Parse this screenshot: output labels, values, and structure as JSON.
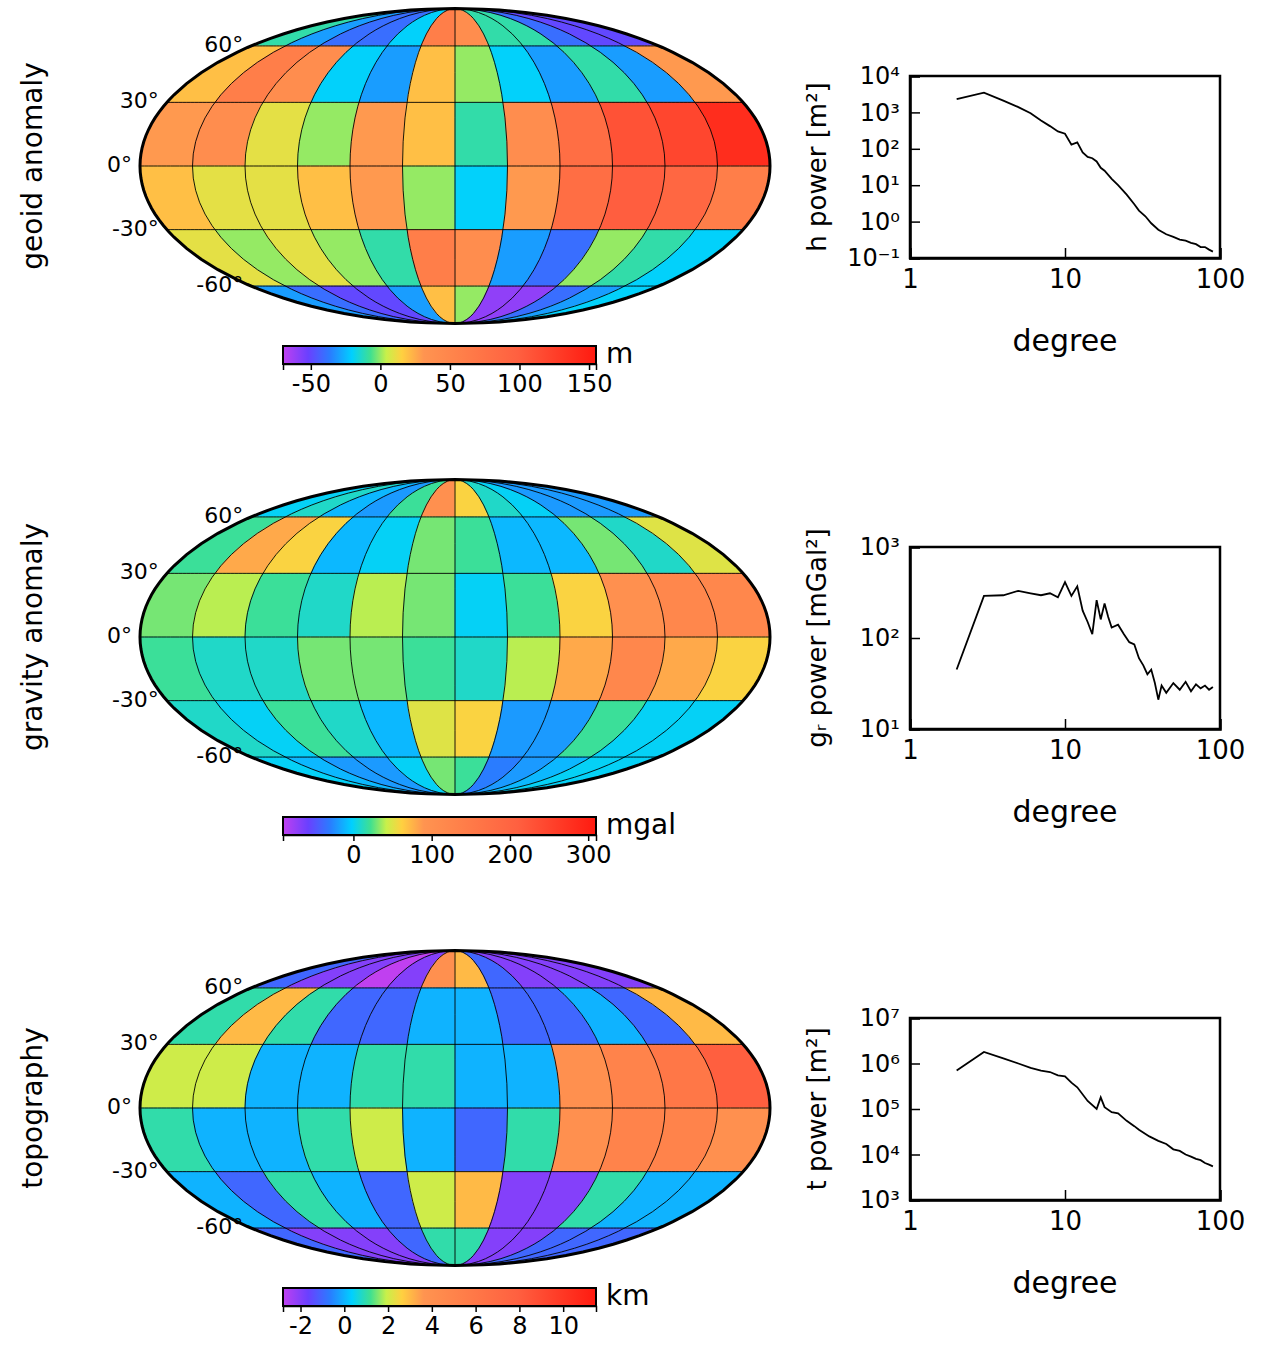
{
  "chart_data": [
    {
      "type": "map",
      "title": "geoid anomaly",
      "yticks": [
        {
          "value": 60,
          "label": "60°"
        },
        {
          "value": 30,
          "label": "30°"
        },
        {
          "value": 0,
          "label": "0°"
        },
        {
          "value": -30,
          "label": "-30°"
        },
        {
          "value": -60,
          "label": "-60°"
        }
      ],
      "cells": [
        [
          -10,
          -30,
          -40,
          -40,
          -20,
          60,
          40,
          -10,
          -10,
          -40,
          -50,
          -50
        ],
        [
          20,
          60,
          40,
          -20,
          -30,
          20,
          0,
          -20,
          -30,
          -10,
          -30,
          30
        ],
        [
          30,
          40,
          10,
          0,
          30,
          20,
          -10,
          40,
          80,
          110,
          120,
          140
        ],
        [
          20,
          10,
          10,
          20,
          30,
          0,
          -20,
          30,
          80,
          100,
          90,
          60
        ],
        [
          10,
          0,
          10,
          0,
          -10,
          60,
          40,
          -30,
          -40,
          0,
          -10,
          -20
        ],
        [
          -30,
          -40,
          -50,
          -50,
          -30,
          20,
          0,
          -60,
          -60,
          -40,
          -30,
          -20
        ]
      ],
      "colorbar": {
        "label": "m",
        "range": [
          -70,
          155
        ],
        "ticks": [
          -50,
          0,
          50,
          100,
          150
        ]
      }
    },
    {
      "type": "line",
      "log": true,
      "color": "#000000",
      "x": [
        2,
        3,
        4,
        5,
        6,
        7,
        8,
        9,
        10,
        11,
        12,
        13,
        14,
        15,
        16,
        17,
        18,
        20,
        22,
        25,
        28,
        30,
        33,
        36,
        40,
        45,
        50,
        55,
        60,
        65,
        70,
        75,
        80,
        85,
        90
      ],
      "values": [
        2300,
        3500,
        2100,
        1400,
        950,
        600,
        420,
        300,
        260,
        130,
        150,
        80,
        60,
        55,
        45,
        30,
        25,
        15,
        10,
        5.5,
        3,
        2,
        1.4,
        0.9,
        0.6,
        0.45,
        0.38,
        0.32,
        0.3,
        0.26,
        0.24,
        0.2,
        0.2,
        0.17,
        0.15
      ],
      "xlim": [
        1,
        100
      ],
      "xticks": [
        1,
        10,
        100
      ],
      "ylim": [
        0.1,
        10000
      ],
      "yticks": [
        {
          "value": 0.1,
          "label": "10⁻¹"
        },
        {
          "value": 1,
          "label": "10⁰"
        },
        {
          "value": 10,
          "label": "10¹"
        },
        {
          "value": 100,
          "label": "10²"
        },
        {
          "value": 1000,
          "label": "10³"
        },
        {
          "value": 10000,
          "label": "10⁴"
        }
      ],
      "xlabel": "degree",
      "ylabel": "h power [m²]"
    },
    {
      "type": "map",
      "title": "gravity anomaly",
      "yticks": [
        {
          "value": 60,
          "label": "60°"
        },
        {
          "value": 30,
          "label": "30°"
        },
        {
          "value": 0,
          "label": "0°"
        },
        {
          "value": -30,
          "label": "-30°"
        },
        {
          "value": -60,
          "label": "-60°"
        }
      ],
      "cells": [
        [
          0,
          10,
          -10,
          -20,
          20,
          100,
          60,
          10,
          0,
          -20,
          -20,
          -20
        ],
        [
          20,
          80,
          60,
          -10,
          0,
          30,
          20,
          -10,
          -10,
          30,
          10,
          50
        ],
        [
          30,
          40,
          20,
          10,
          40,
          30,
          0,
          20,
          60,
          100,
          120,
          120
        ],
        [
          20,
          10,
          10,
          30,
          30,
          20,
          10,
          40,
          80,
          120,
          80,
          60
        ],
        [
          10,
          0,
          20,
          10,
          -10,
          50,
          60,
          -20,
          -20,
          20,
          0,
          0
        ],
        [
          0,
          -10,
          -20,
          -20,
          0,
          30,
          20,
          -30,
          -20,
          -10,
          0,
          0
        ]
      ],
      "colorbar": {
        "label": "mgal",
        "range": [
          -90,
          310
        ],
        "ticks": [
          0,
          100,
          200,
          300
        ]
      }
    },
    {
      "type": "line",
      "log": true,
      "color": "#000000",
      "x": [
        2,
        3,
        4,
        5,
        6,
        7,
        8,
        9,
        10,
        11,
        12,
        13,
        14,
        15,
        16,
        17,
        18,
        19,
        20,
        22,
        24,
        26,
        28,
        30,
        32,
        34,
        36,
        38,
        40,
        42,
        45,
        50,
        55,
        60,
        65,
        70,
        75,
        80,
        85,
        90
      ],
      "values": [
        45,
        290,
        295,
        330,
        310,
        295,
        310,
        280,
        410,
        290,
        370,
        200,
        150,
        110,
        260,
        160,
        240,
        170,
        130,
        140,
        110,
        90,
        85,
        60,
        50,
        40,
        45,
        32,
        21,
        30,
        25,
        32,
        27,
        33,
        26,
        31,
        28,
        30,
        27,
        29
      ],
      "xlim": [
        1,
        100
      ],
      "xticks": [
        1,
        10,
        100
      ],
      "ylim": [
        10,
        1000
      ],
      "yticks": [
        {
          "value": 10,
          "label": "10¹"
        },
        {
          "value": 100,
          "label": "10²"
        },
        {
          "value": 1000,
          "label": "10³"
        }
      ],
      "xlabel": "degree",
      "ylabel": "gᵣ power [mGal²]"
    },
    {
      "type": "map",
      "title": "topography",
      "yticks": [
        {
          "value": 60,
          "label": "60°"
        },
        {
          "value": 30,
          "label": "30°"
        },
        {
          "value": 0,
          "label": "0°"
        },
        {
          "value": -30,
          "label": "-30°"
        },
        {
          "value": -60,
          "label": "-60°"
        }
      ],
      "cells": [
        [
          -1,
          -2,
          -2,
          -3,
          -2,
          4,
          3,
          -1,
          -2,
          -2,
          -2,
          -2
        ],
        [
          1,
          3,
          1,
          -1,
          -1,
          0,
          0,
          -1,
          -1,
          0,
          -1,
          3
        ],
        [
          2,
          2,
          0,
          0,
          1,
          1,
          0,
          0,
          4,
          5,
          6,
          8
        ],
        [
          1,
          0,
          0,
          1,
          2,
          0,
          -1,
          1,
          4,
          5,
          5,
          4
        ],
        [
          0,
          -1,
          1,
          0,
          -1,
          2,
          3,
          -2,
          -2,
          1,
          0,
          0
        ],
        [
          -1,
          -2,
          -2,
          -2,
          -1,
          1,
          1,
          -2,
          -2,
          -1,
          -1,
          -1
        ]
      ],
      "colorbar": {
        "label": "km",
        "range": [
          -2.8,
          11.5
        ],
        "ticks": [
          -2,
          0,
          2,
          4,
          6,
          8,
          10
        ]
      }
    },
    {
      "type": "line",
      "log": true,
      "color": "#000000",
      "x": [
        2,
        3,
        4,
        5,
        6,
        7,
        8,
        9,
        10,
        11,
        12,
        14,
        16,
        17,
        18,
        20,
        22,
        25,
        28,
        30,
        35,
        40,
        45,
        50,
        55,
        60,
        65,
        70,
        75,
        80,
        85,
        90
      ],
      "values": [
        700000,
        1800000,
        1300000,
        1000000,
        800000,
        700000,
        650000,
        550000,
        520000,
        380000,
        300000,
        150000,
        100000,
        180000,
        110000,
        85000,
        80000,
        55000,
        42000,
        35000,
        25000,
        20000,
        17000,
        13000,
        12000,
        10000,
        9000,
        8000,
        7500,
        6500,
        6000,
        5500
      ],
      "xlim": [
        1,
        100
      ],
      "xticks": [
        1,
        10,
        100
      ],
      "ylim": [
        1000,
        10000000
      ],
      "yticks": [
        {
          "value": 1000,
          "label": "10³"
        },
        {
          "value": 10000,
          "label": "10⁴"
        },
        {
          "value": 100000,
          "label": "10⁵"
        },
        {
          "value": 1000000,
          "label": "10⁶"
        },
        {
          "value": 10000000,
          "label": "10⁷"
        }
      ],
      "xlabel": "degree",
      "ylabel": "t power [m²]"
    }
  ]
}
